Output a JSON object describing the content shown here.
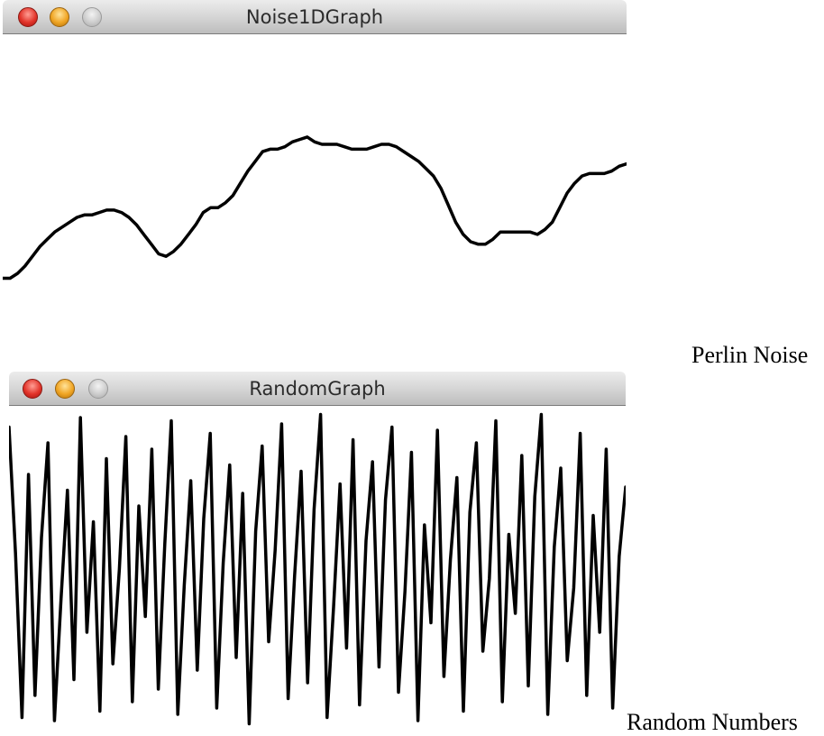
{
  "windows": {
    "noise": {
      "title": "Noise1DGraph",
      "series": [
        0.05,
        0.05,
        0.07,
        0.1,
        0.14,
        0.18,
        0.21,
        0.24,
        0.26,
        0.28,
        0.3,
        0.31,
        0.31,
        0.32,
        0.33,
        0.33,
        0.32,
        0.3,
        0.27,
        0.23,
        0.19,
        0.15,
        0.14,
        0.16,
        0.19,
        0.23,
        0.27,
        0.32,
        0.34,
        0.34,
        0.36,
        0.39,
        0.44,
        0.49,
        0.53,
        0.57,
        0.58,
        0.58,
        0.59,
        0.61,
        0.62,
        0.63,
        0.61,
        0.6,
        0.6,
        0.6,
        0.59,
        0.58,
        0.58,
        0.58,
        0.59,
        0.6,
        0.6,
        0.59,
        0.57,
        0.55,
        0.53,
        0.5,
        0.47,
        0.42,
        0.35,
        0.28,
        0.23,
        0.2,
        0.19,
        0.19,
        0.21,
        0.24,
        0.24,
        0.24,
        0.24,
        0.24,
        0.23,
        0.25,
        0.28,
        0.34,
        0.4,
        0.44,
        0.47,
        0.48,
        0.48,
        0.48,
        0.49,
        0.51,
        0.52
      ]
    },
    "random": {
      "title": "RandomGraph",
      "series": [
        0.95,
        0.55,
        0.03,
        0.8,
        0.1,
        0.6,
        0.9,
        0.02,
        0.4,
        0.75,
        0.15,
        0.98,
        0.3,
        0.65,
        0.05,
        0.85,
        0.2,
        0.5,
        0.92,
        0.08,
        0.7,
        0.35,
        0.88,
        0.12,
        0.58,
        0.97,
        0.04,
        0.45,
        0.78,
        0.18,
        0.66,
        0.93,
        0.06,
        0.52,
        0.83,
        0.22,
        0.74,
        0.01,
        0.62,
        0.89,
        0.27,
        0.56,
        0.96,
        0.09,
        0.48,
        0.81,
        0.14,
        0.69,
        0.99,
        0.03,
        0.38,
        0.77,
        0.25,
        0.91,
        0.07,
        0.59,
        0.84,
        0.19,
        0.72,
        0.95,
        0.11,
        0.43,
        0.87,
        0.02,
        0.64,
        0.33,
        0.94,
        0.16,
        0.53,
        0.79,
        0.05,
        0.68,
        0.9,
        0.24,
        0.47,
        0.97,
        0.08,
        0.61,
        0.36,
        0.86,
        0.13,
        0.73,
        0.99,
        0.04,
        0.57,
        0.82,
        0.21,
        0.44,
        0.93,
        0.1,
        0.67,
        0.3,
        0.88,
        0.06,
        0.54,
        0.76
      ]
    }
  },
  "captions": {
    "perlin": "Perlin Noise",
    "random": "Random Numbers"
  },
  "colors": {
    "line": "#000000",
    "background": "#ffffff"
  }
}
